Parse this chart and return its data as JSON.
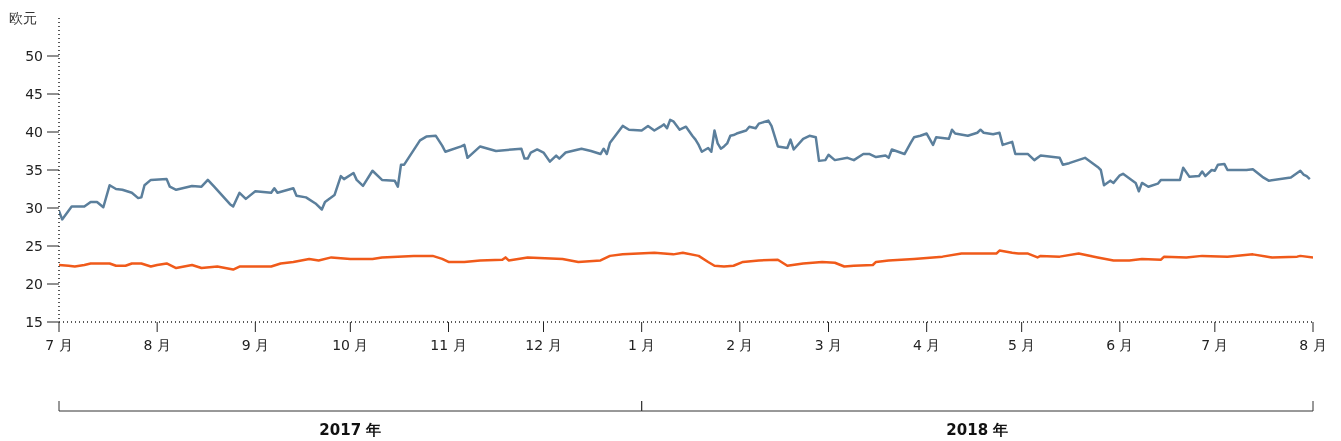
{
  "chart_data": {
    "type": "line",
    "ylabel": "欧元",
    "xlim": [
      "2017-07-01",
      "2018-08-01"
    ],
    "xticks": [
      {
        "value": "2017-07-01",
        "label": "7 月"
      },
      {
        "value": "2017-08-01",
        "label": "8 月"
      },
      {
        "value": "2017-09-01",
        "label": "9 月"
      },
      {
        "value": "2017-10-01",
        "label": "10 月"
      },
      {
        "value": "2017-11-01",
        "label": "11 月"
      },
      {
        "value": "2017-12-01",
        "label": "12 月"
      },
      {
        "value": "2018-01-01",
        "label": "1 月"
      },
      {
        "value": "2018-02-01",
        "label": "2 月"
      },
      {
        "value": "2018-03-01",
        "label": "3 月"
      },
      {
        "value": "2018-04-01",
        "label": "4 月"
      },
      {
        "value": "2018-05-01",
        "label": "5 月"
      },
      {
        "value": "2018-06-01",
        "label": "6 月"
      },
      {
        "value": "2018-07-01",
        "label": "7 月"
      },
      {
        "value": "2018-08-01",
        "label": "8 月"
      }
    ],
    "ylim": [
      15,
      55
    ],
    "yticks": [
      15,
      20,
      25,
      30,
      35,
      40,
      45,
      50
    ],
    "annotations": [
      "2017 年",
      "2018 年"
    ],
    "series": [
      {
        "color": "#5b7f9c",
        "x": [
          "2017-07-01",
          "2017-07-02",
          "2017-07-05",
          "2017-07-09",
          "2017-07-11",
          "2017-07-13",
          "2017-07-15",
          "2017-07-17",
          "2017-07-19",
          "2017-07-21",
          "2017-07-24",
          "2017-07-26",
          "2017-07-27",
          "2017-07-28",
          "2017-07-30",
          "2017-08-04",
          "2017-08-05",
          "2017-08-07",
          "2017-08-12",
          "2017-08-15",
          "2017-08-17",
          "2017-08-19",
          "2017-08-24",
          "2017-08-25",
          "2017-08-27",
          "2017-08-29",
          "2017-09-01",
          "2017-09-06",
          "2017-09-07",
          "2017-09-08",
          "2017-09-13",
          "2017-09-14",
          "2017-09-17",
          "2017-09-20",
          "2017-09-22",
          "2017-09-23",
          "2017-09-26",
          "2017-09-28",
          "2017-09-29",
          "2017-10-02",
          "2017-10-03",
          "2017-10-05",
          "2017-10-08",
          "2017-10-11",
          "2017-10-15",
          "2017-10-16",
          "2017-10-17",
          "2017-10-18",
          "2017-10-23",
          "2017-10-25",
          "2017-10-28",
          "2017-10-30",
          "2017-10-31",
          "2017-11-05",
          "2017-11-06",
          "2017-11-07",
          "2017-11-11",
          "2017-11-16",
          "2017-11-21",
          "2017-11-24",
          "2017-11-25",
          "2017-11-26",
          "2017-11-27",
          "2017-11-29",
          "2017-12-01",
          "2017-12-03",
          "2017-12-05",
          "2017-12-06",
          "2017-12-08",
          "2017-12-13",
          "2017-12-16",
          "2017-12-19",
          "2017-12-20",
          "2017-12-21",
          "2017-12-22",
          "2017-12-26",
          "2017-12-28",
          "2018-01-01",
          "2018-01-03",
          "2018-01-05",
          "2018-01-07",
          "2018-01-08",
          "2018-01-09",
          "2018-01-10",
          "2018-01-11",
          "2018-01-13",
          "2018-01-15",
          "2018-01-17",
          "2018-01-18",
          "2018-01-19",
          "2018-01-20",
          "2018-01-22",
          "2018-01-23",
          "2018-01-24",
          "2018-01-25",
          "2018-01-26",
          "2018-01-27",
          "2018-01-28",
          "2018-01-29",
          "2018-01-30",
          "2018-01-31",
          "2018-02-03",
          "2018-02-04",
          "2018-02-06",
          "2018-02-07",
          "2018-02-10",
          "2018-02-11",
          "2018-02-13",
          "2018-02-16",
          "2018-02-17",
          "2018-02-18",
          "2018-02-21",
          "2018-02-23",
          "2018-02-25",
          "2018-02-26",
          "2018-02-28",
          "2018-03-01",
          "2018-03-03",
          "2018-03-07",
          "2018-03-09",
          "2018-03-12",
          "2018-03-14",
          "2018-03-16",
          "2018-03-19",
          "2018-03-20",
          "2018-03-21",
          "2018-03-25",
          "2018-03-27",
          "2018-03-28",
          "2018-03-30",
          "2018-04-01",
          "2018-04-03",
          "2018-04-04",
          "2018-04-08",
          "2018-04-09",
          "2018-04-10",
          "2018-04-14",
          "2018-04-17",
          "2018-04-18",
          "2018-04-19",
          "2018-04-22",
          "2018-04-24",
          "2018-04-25",
          "2018-04-28",
          "2018-04-29",
          "2018-05-03",
          "2018-05-05",
          "2018-05-07",
          "2018-05-11",
          "2018-05-13",
          "2018-05-14",
          "2018-05-16",
          "2018-05-21",
          "2018-05-25",
          "2018-05-26",
          "2018-05-27",
          "2018-05-29",
          "2018-05-30",
          "2018-06-01",
          "2018-06-02",
          "2018-06-06",
          "2018-06-07",
          "2018-06-08",
          "2018-06-10",
          "2018-06-13",
          "2018-06-14",
          "2018-06-17",
          "2018-06-20",
          "2018-06-21",
          "2018-06-23",
          "2018-06-26",
          "2018-06-27",
          "2018-06-28",
          "2018-06-30",
          "2018-07-01",
          "2018-07-02",
          "2018-07-04",
          "2018-07-05",
          "2018-07-11",
          "2018-07-13",
          "2018-07-16",
          "2018-07-18",
          "2018-07-25",
          "2018-07-28",
          "2018-07-29",
          "2018-07-30",
          "2018-07-31"
        ],
        "values": [
          29.6,
          28.5,
          30.2,
          30.2,
          30.8,
          30.8,
          30.1,
          33.0,
          32.5,
          32.4,
          32.0,
          31.3,
          31.4,
          33.0,
          33.7,
          33.8,
          32.8,
          32.4,
          32.9,
          32.8,
          33.7,
          32.8,
          30.5,
          30.2,
          32.0,
          31.2,
          32.2,
          32.0,
          32.6,
          32.0,
          32.6,
          31.6,
          31.4,
          30.6,
          29.8,
          30.8,
          31.7,
          34.2,
          33.8,
          34.6,
          33.7,
          32.9,
          34.9,
          33.7,
          33.6,
          32.8,
          35.7,
          35.7,
          38.9,
          39.4,
          39.5,
          38.2,
          37.4,
          38.1,
          38.3,
          36.6,
          38.1,
          37.5,
          37.7,
          37.8,
          36.5,
          36.5,
          37.3,
          37.7,
          37.3,
          36.1,
          36.9,
          36.5,
          37.3,
          37.8,
          37.5,
          37.1,
          37.8,
          37.1,
          38.6,
          40.8,
          40.3,
          40.2,
          40.8,
          40.2,
          40.7,
          41.0,
          40.5,
          41.6,
          41.4,
          40.3,
          40.7,
          39.5,
          39.0,
          38.3,
          37.4,
          37.9,
          37.4,
          40.2,
          38.5,
          37.8,
          38.1,
          38.5,
          39.5,
          39.6,
          39.8,
          40.2,
          40.7,
          40.5,
          41.1,
          41.5,
          40.8,
          38.1,
          37.9,
          39.0,
          37.7,
          39.1,
          39.5,
          39.3,
          36.2,
          36.3,
          37.0,
          36.3,
          36.6,
          36.3,
          37.1,
          37.1,
          36.7,
          36.9,
          36.6,
          37.7,
          37.1,
          38.6,
          39.3,
          39.5,
          39.8,
          38.3,
          39.3,
          39.1,
          40.3,
          39.8,
          39.5,
          39.9,
          40.3,
          39.9,
          39.7,
          39.9,
          38.3,
          38.7,
          37.1,
          37.1,
          36.3,
          36.9,
          36.7,
          36.6,
          35.7,
          35.9,
          36.6,
          35.4,
          35.0,
          33.0,
          33.6,
          33.3,
          34.3,
          34.5,
          33.3,
          32.2,
          33.3,
          32.8,
          33.2,
          33.7,
          33.7,
          33.7,
          35.3,
          34.1,
          34.2,
          34.8,
          34.2,
          35.0,
          34.9,
          35.7,
          35.8,
          35.0,
          35.0,
          35.1,
          34.1,
          33.6,
          34.0,
          34.9,
          34.4,
          34.2,
          33.8
        ]
      },
      {
        "color": "#f05a1a",
        "x": [
          "2017-07-01",
          "2017-07-04",
          "2017-07-06",
          "2017-07-09",
          "2017-07-11",
          "2017-07-17",
          "2017-07-19",
          "2017-07-22",
          "2017-07-24",
          "2017-07-27",
          "2017-07-30",
          "2017-08-01",
          "2017-08-04",
          "2017-08-07",
          "2017-08-12",
          "2017-08-15",
          "2017-08-20",
          "2017-08-25",
          "2017-08-27",
          "2017-09-02",
          "2017-09-06",
          "2017-09-09",
          "2017-09-13",
          "2017-09-18",
          "2017-09-21",
          "2017-09-25",
          "2017-10-01",
          "2017-10-08",
          "2017-10-11",
          "2017-10-16",
          "2017-10-21",
          "2017-10-27",
          "2017-10-30",
          "2017-11-01",
          "2017-11-06",
          "2017-11-11",
          "2017-11-18",
          "2017-11-19",
          "2017-11-20",
          "2017-11-26",
          "2017-12-07",
          "2017-12-12",
          "2017-12-19",
          "2017-12-22",
          "2017-12-26",
          "2018-01-05",
          "2018-01-11",
          "2018-01-14",
          "2018-01-19",
          "2018-01-22",
          "2018-01-24",
          "2018-01-27",
          "2018-01-30",
          "2018-02-02",
          "2018-02-07",
          "2018-02-13",
          "2018-02-16",
          "2018-02-21",
          "2018-02-27",
          "2018-03-03",
          "2018-03-06",
          "2018-03-09",
          "2018-03-15",
          "2018-03-16",
          "2018-03-20",
          "2018-03-28",
          "2018-04-03",
          "2018-04-06",
          "2018-04-12",
          "2018-04-23",
          "2018-04-24",
          "2018-04-28",
          "2018-04-30",
          "2018-05-03",
          "2018-05-06",
          "2018-05-07",
          "2018-05-13",
          "2018-05-19",
          "2018-05-25",
          "2018-05-30",
          "2018-06-04",
          "2018-06-08",
          "2018-06-14",
          "2018-06-15",
          "2018-06-22",
          "2018-06-27",
          "2018-07-05",
          "2018-07-13",
          "2018-07-19",
          "2018-07-27",
          "2018-07-28",
          "2018-08-01"
        ],
        "values": [
          22.5,
          22.4,
          22.3,
          22.5,
          22.7,
          22.7,
          22.4,
          22.4,
          22.7,
          22.7,
          22.3,
          22.5,
          22.7,
          22.1,
          22.5,
          22.1,
          22.3,
          21.9,
          22.3,
          22.3,
          22.3,
          22.7,
          22.9,
          23.3,
          23.1,
          23.5,
          23.3,
          23.3,
          23.5,
          23.6,
          23.7,
          23.7,
          23.3,
          22.9,
          22.9,
          23.1,
          23.2,
          23.5,
          23.1,
          23.5,
          23.3,
          22.9,
          23.1,
          23.7,
          23.9,
          24.1,
          23.9,
          24.1,
          23.7,
          22.9,
          22.4,
          22.3,
          22.4,
          22.9,
          23.1,
          23.2,
          22.4,
          22.7,
          22.9,
          22.8,
          22.3,
          22.4,
          22.5,
          22.9,
          23.1,
          23.3,
          23.5,
          23.6,
          24.0,
          24.0,
          24.4,
          24.1,
          24.0,
          24.0,
          23.5,
          23.7,
          23.6,
          24.0,
          23.5,
          23.1,
          23.1,
          23.3,
          23.2,
          23.6,
          23.5,
          23.7,
          23.6,
          23.9,
          23.5,
          23.6,
          23.7,
          23.5
        ]
      }
    ]
  }
}
